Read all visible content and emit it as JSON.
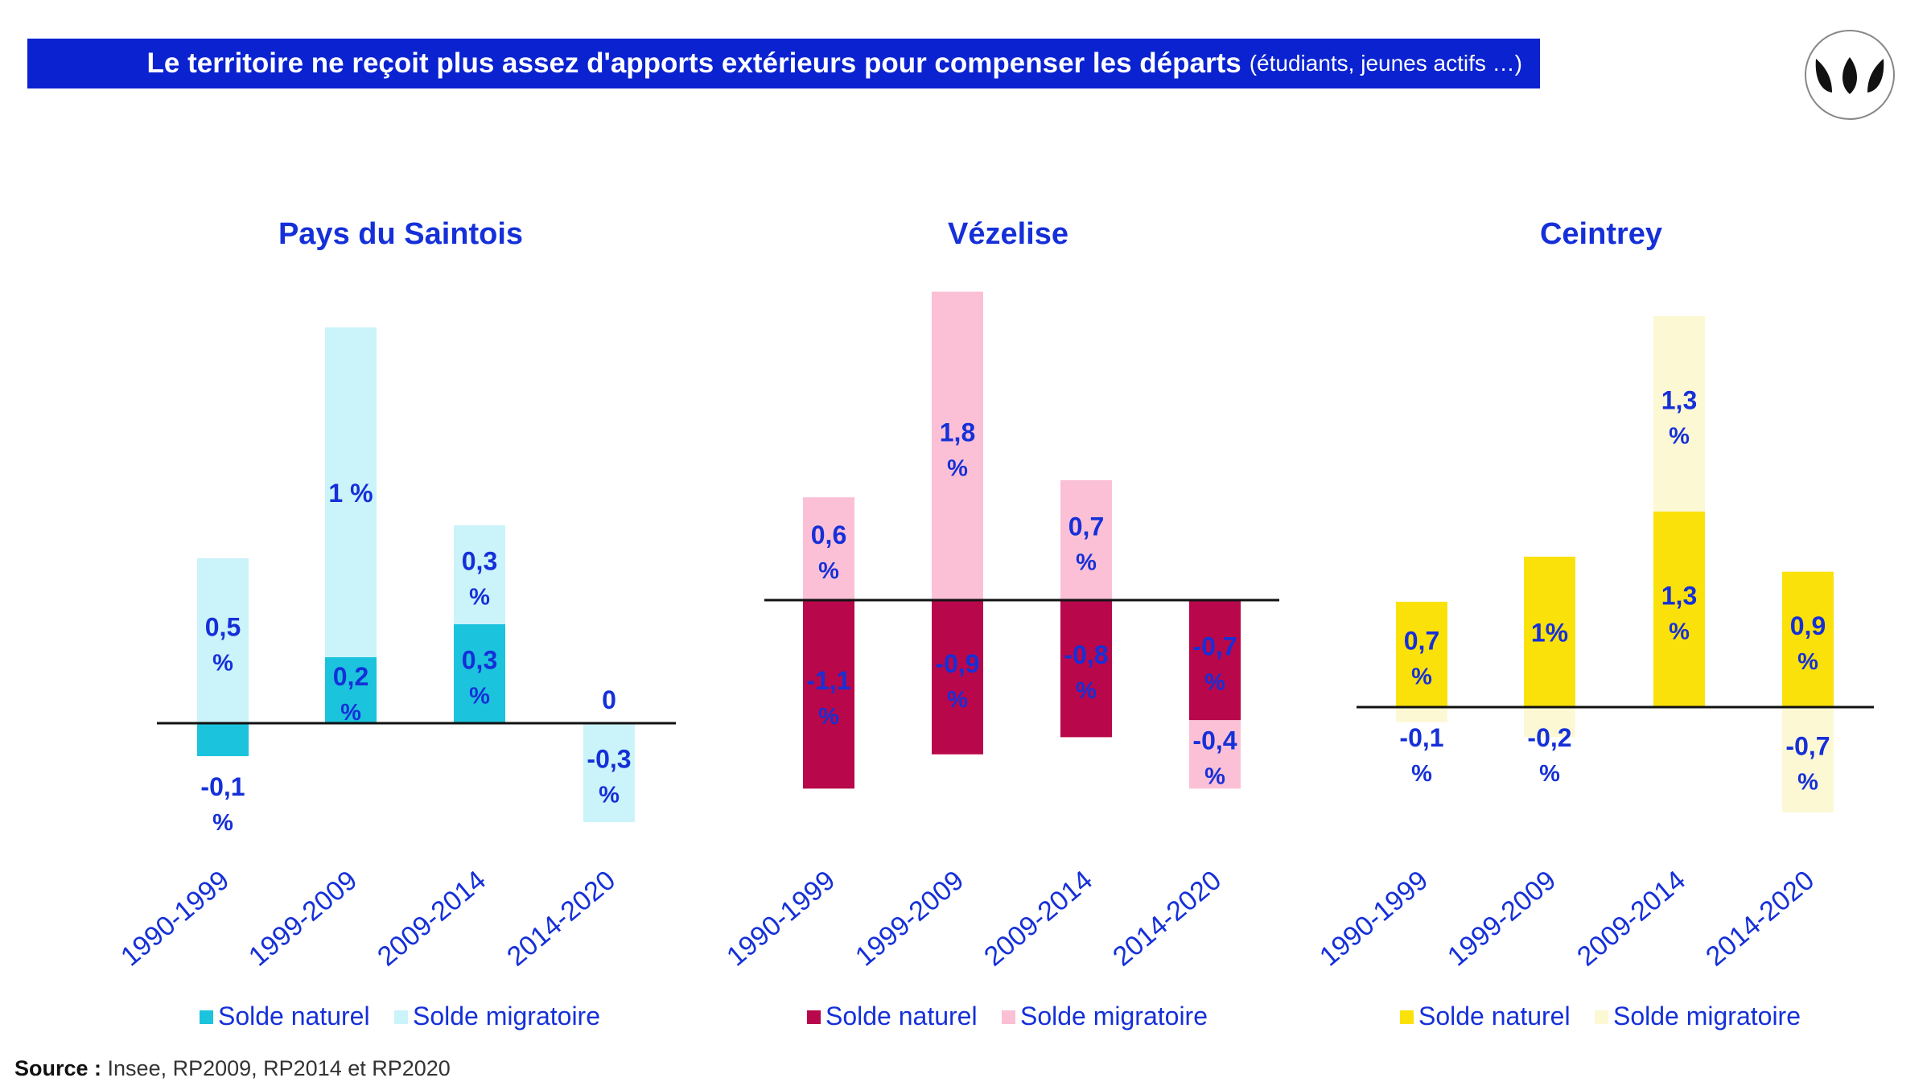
{
  "banner": {
    "title": "Le territoire ne reçoit plus assez d'apports extérieurs pour compenser les départs",
    "subtitle": "(étudiants, jeunes actifs …)"
  },
  "logo": {
    "icon": "three-leaves-logo",
    "color": "#111111"
  },
  "source": {
    "label": "Source :",
    "text": " Insee, RP2009, RP2014 et RP2020"
  },
  "colors": {
    "text_blue": "#1530d8",
    "banner_blue": "#0a22d0"
  },
  "chart_data": [
    {
      "type": "bar",
      "title": "Pays du Saintois",
      "categories": [
        "1990-1999",
        "1999-2009",
        "2009-2014",
        "2014-2020"
      ],
      "series": [
        {
          "name": "Solde naturel",
          "color": "#1cc3dd",
          "values": [
            -0.1,
            0.2,
            0.3,
            0
          ],
          "labels": [
            "-0,1 %",
            "0,2 %",
            "0,3 %",
            "0"
          ]
        },
        {
          "name": "Solde migratoire",
          "color": "#cbf3fa",
          "values": [
            0.5,
            1,
            0.3,
            -0.3
          ],
          "labels": [
            "0,5 %",
            "1 %",
            "0,3 %",
            "-0,3 %"
          ]
        }
      ]
    },
    {
      "type": "bar",
      "title": "Vézelise",
      "categories": [
        "1990-1999",
        "1999-2009",
        "2009-2014",
        "2014-2020"
      ],
      "series": [
        {
          "name": "Solde naturel",
          "color": "#b8074a",
          "values": [
            -1.1,
            -0.9,
            -0.8,
            -0.7
          ],
          "labels": [
            "-1,1 %",
            "-0,9 %",
            "-0,8 %",
            "-0,7 %"
          ]
        },
        {
          "name": "Solde migratoire",
          "color": "#fbc0d6",
          "values": [
            0.6,
            1.8,
            0.7,
            -0.4
          ],
          "labels": [
            "0,6 %",
            "1,8 %",
            "0,7 %",
            "-0,4 %"
          ]
        }
      ]
    },
    {
      "type": "bar",
      "title": "Ceintrey",
      "categories": [
        "1990-1999",
        "1999-2009",
        "2009-2014",
        "2014-2020"
      ],
      "series": [
        {
          "name": "Solde naturel",
          "color": "#fbe10a",
          "values": [
            0.7,
            1,
            1.3,
            0.9
          ],
          "labels": [
            "0,7 %",
            "1%",
            "1,3 %",
            "0,9 %"
          ]
        },
        {
          "name": "Solde migratoire",
          "color": "#fdf8d4",
          "values": [
            -0.1,
            -0.2,
            1.3,
            -0.7
          ],
          "labels": [
            "-0,1 %",
            "-0,2 %",
            "1,3 %",
            "-0,7 %"
          ]
        }
      ]
    }
  ]
}
